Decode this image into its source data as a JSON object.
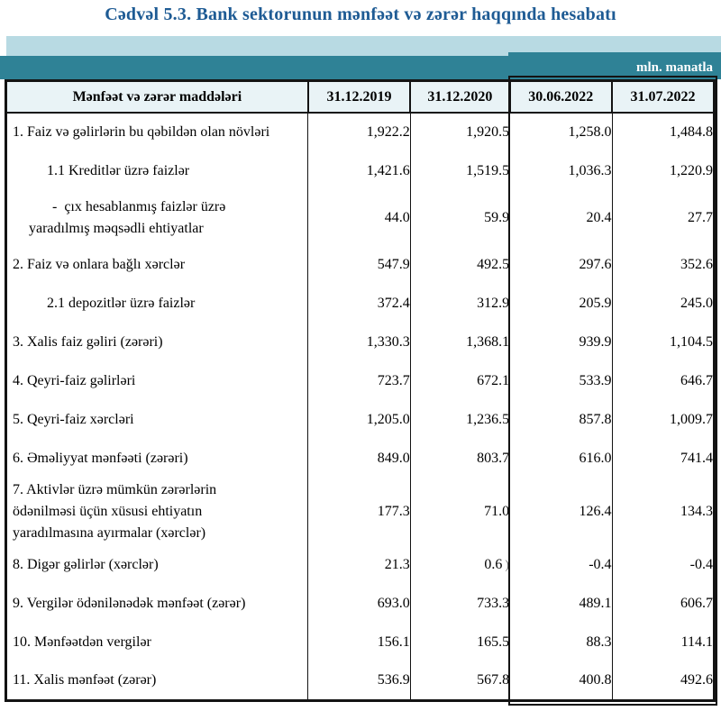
{
  "page": {
    "title": "Cədvəl 5.3. Bank sektorunun mənfəət və zərər haqqında hesabatı",
    "unit_label": "mln. manatla",
    "colors": {
      "title_blue": "#1e5b94",
      "band_light": "#b8dae3",
      "band_teal": "#2f8296",
      "header_bg": "#e9f3f6",
      "border": "#131313"
    }
  },
  "table": {
    "columns": [
      "Mənfəət və zərər maddələri",
      "31.12.2019",
      "31.12.2020",
      "30.06.2022",
      "31.07.2022"
    ],
    "rows": [
      {
        "style": "main",
        "label_lines": [
          "1. Faiz və gəlirlərin bu qəbildən olan növləri"
        ],
        "values": [
          "1,922.2",
          "1,920.5",
          "1,258.0",
          "1,484.8"
        ]
      },
      {
        "style": "sub",
        "label_lines": [
          "1.1 Kreditlər üzrə faizlər"
        ],
        "values": [
          "1,421.6",
          "1,519.5",
          "1,036.3",
          "1,220.9"
        ]
      },
      {
        "style": "dash",
        "label_lines": [
          "-  çıx hesablanmış faizlər üzrə",
          "yaradılmış məqsədli ehtiyatlar"
        ],
        "values": [
          "44.0",
          "59.9",
          "20.4",
          "27.7"
        ]
      },
      {
        "style": "main",
        "label_lines": [
          "2. Faiz və onlara bağlı xərclər"
        ],
        "values": [
          "547.9",
          "492.5",
          "297.6",
          "352.6"
        ]
      },
      {
        "style": "sub",
        "label_lines": [
          "2.1 depozitlər üzrə faizlər"
        ],
        "values": [
          "372.4",
          "312.9",
          "205.9",
          "245.0"
        ]
      },
      {
        "style": "main",
        "label_lines": [
          "3. Xalis faiz gəliri (zərəri)"
        ],
        "values": [
          "1,330.3",
          "1,368.1",
          "939.9",
          "1,104.5"
        ]
      },
      {
        "style": "main",
        "label_lines": [
          "4. Qeyri-faiz gəlirləri"
        ],
        "values": [
          "723.7",
          "672.1",
          "533.9",
          "646.7"
        ]
      },
      {
        "style": "main",
        "label_lines": [
          "5. Qeyri-faiz xərcləri"
        ],
        "values": [
          "1,205.0",
          "1,236.5",
          "857.8",
          "1,009.7"
        ]
      },
      {
        "style": "main",
        "label_lines": [
          "6. Əməliyyat mənfəəti (zərəri)"
        ],
        "values": [
          "849.0",
          "803.7",
          "616.0",
          "741.4"
        ]
      },
      {
        "style": "wrap3",
        "label_lines": [
          "7. Aktivlər üzrə mümkün zərərlərin",
          "ödənilməsi üçün xüsusi ehtiyatın",
          "yaradılmasına ayırmalar (xərclər)"
        ],
        "values": [
          "177.3",
          "71.0",
          "126.4",
          "134.3"
        ]
      },
      {
        "style": "main",
        "label_lines": [
          "8. Digər gəlirlər (xərclər)"
        ],
        "values": [
          "21.3",
          "0.6",
          "-0.4",
          "-0.4"
        ],
        "ghost": {
          "col": 1,
          "char": ")"
        }
      },
      {
        "style": "main",
        "label_lines": [
          "9. Vergilər ödənilənədək mənfəət (zərər)"
        ],
        "values": [
          "693.0",
          "733.3",
          "489.1",
          "606.7"
        ]
      },
      {
        "style": "main",
        "label_lines": [
          "10. Mənfəətdən vergilər"
        ],
        "values": [
          "156.1",
          "165.5",
          "88.3",
          "114.1"
        ]
      },
      {
        "style": "main",
        "label_lines": [
          "11. Xalis mənfəət (zərər)"
        ],
        "values": [
          "536.9",
          "567.8",
          "400.8",
          "492.6"
        ]
      }
    ]
  }
}
